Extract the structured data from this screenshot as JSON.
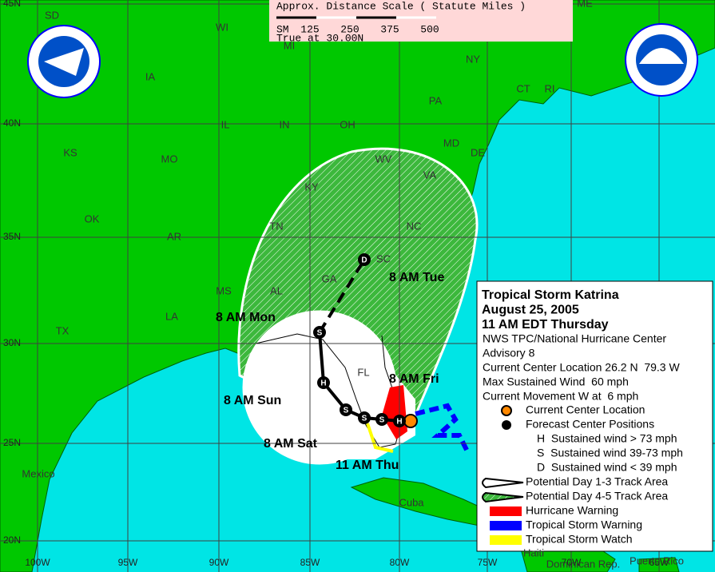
{
  "scale": {
    "title": "Approx. Distance Scale ( Statute Miles )",
    "unit": "SM",
    "marks": [
      "125",
      "250",
      "375",
      "500"
    ],
    "note": "True at 30.00N"
  },
  "latitudes": [
    "45N",
    "40N",
    "35N",
    "30N",
    "25N",
    "20N"
  ],
  "longitudes": [
    "100W",
    "95W",
    "90W",
    "85W",
    "80W",
    "75W",
    "70W",
    "65W"
  ],
  "states": [
    "SD",
    "WI",
    "MI",
    "IA",
    "IL",
    "IN",
    "OH",
    "PA",
    "NY",
    "ME",
    "CT",
    "RI",
    "MD",
    "DE",
    "WV",
    "VA",
    "KY",
    "KS",
    "MO",
    "OK",
    "AR",
    "TN",
    "NC",
    "SC",
    "GA",
    "AL",
    "MS",
    "LA",
    "TX",
    "FL"
  ],
  "places": [
    "Mexico",
    "Cuba",
    "Haiti",
    "Dominican Rep.",
    "Puerto Rico"
  ],
  "logo": "NOAA",
  "forecast_times": [
    "8 AM Tue",
    "8 AM Mon",
    "8 AM Sun",
    "8 AM Sat",
    "11 AM Thu",
    "8 AM Fri"
  ],
  "track_points": [
    "D",
    "S",
    "H",
    "S",
    "S",
    "S",
    "H"
  ],
  "legend": {
    "title": [
      "Tropical Storm Katrina",
      "August 25, 2005",
      "11 AM EDT Thursday"
    ],
    "info": [
      "NWS TPC/National Hurricane Center",
      "Advisory 8",
      "Current Center Location 26.2 N  79.3 W",
      "Max Sustained Wind  60 mph",
      "Current Movement W at  6 mph"
    ],
    "items": [
      "Current Center Location",
      "Forecast Center Positions",
      "H  Sustained wind > 73 mph",
      "S  Sustained wind 39-73 mph",
      "D  Sustained wind < 39 mph",
      "Potential Day 1-3 Track Area",
      "Potential Day 4-5 Track Area",
      "Hurricane Warning",
      "Tropical Storm Warning",
      "Tropical Storm Watch"
    ]
  }
}
